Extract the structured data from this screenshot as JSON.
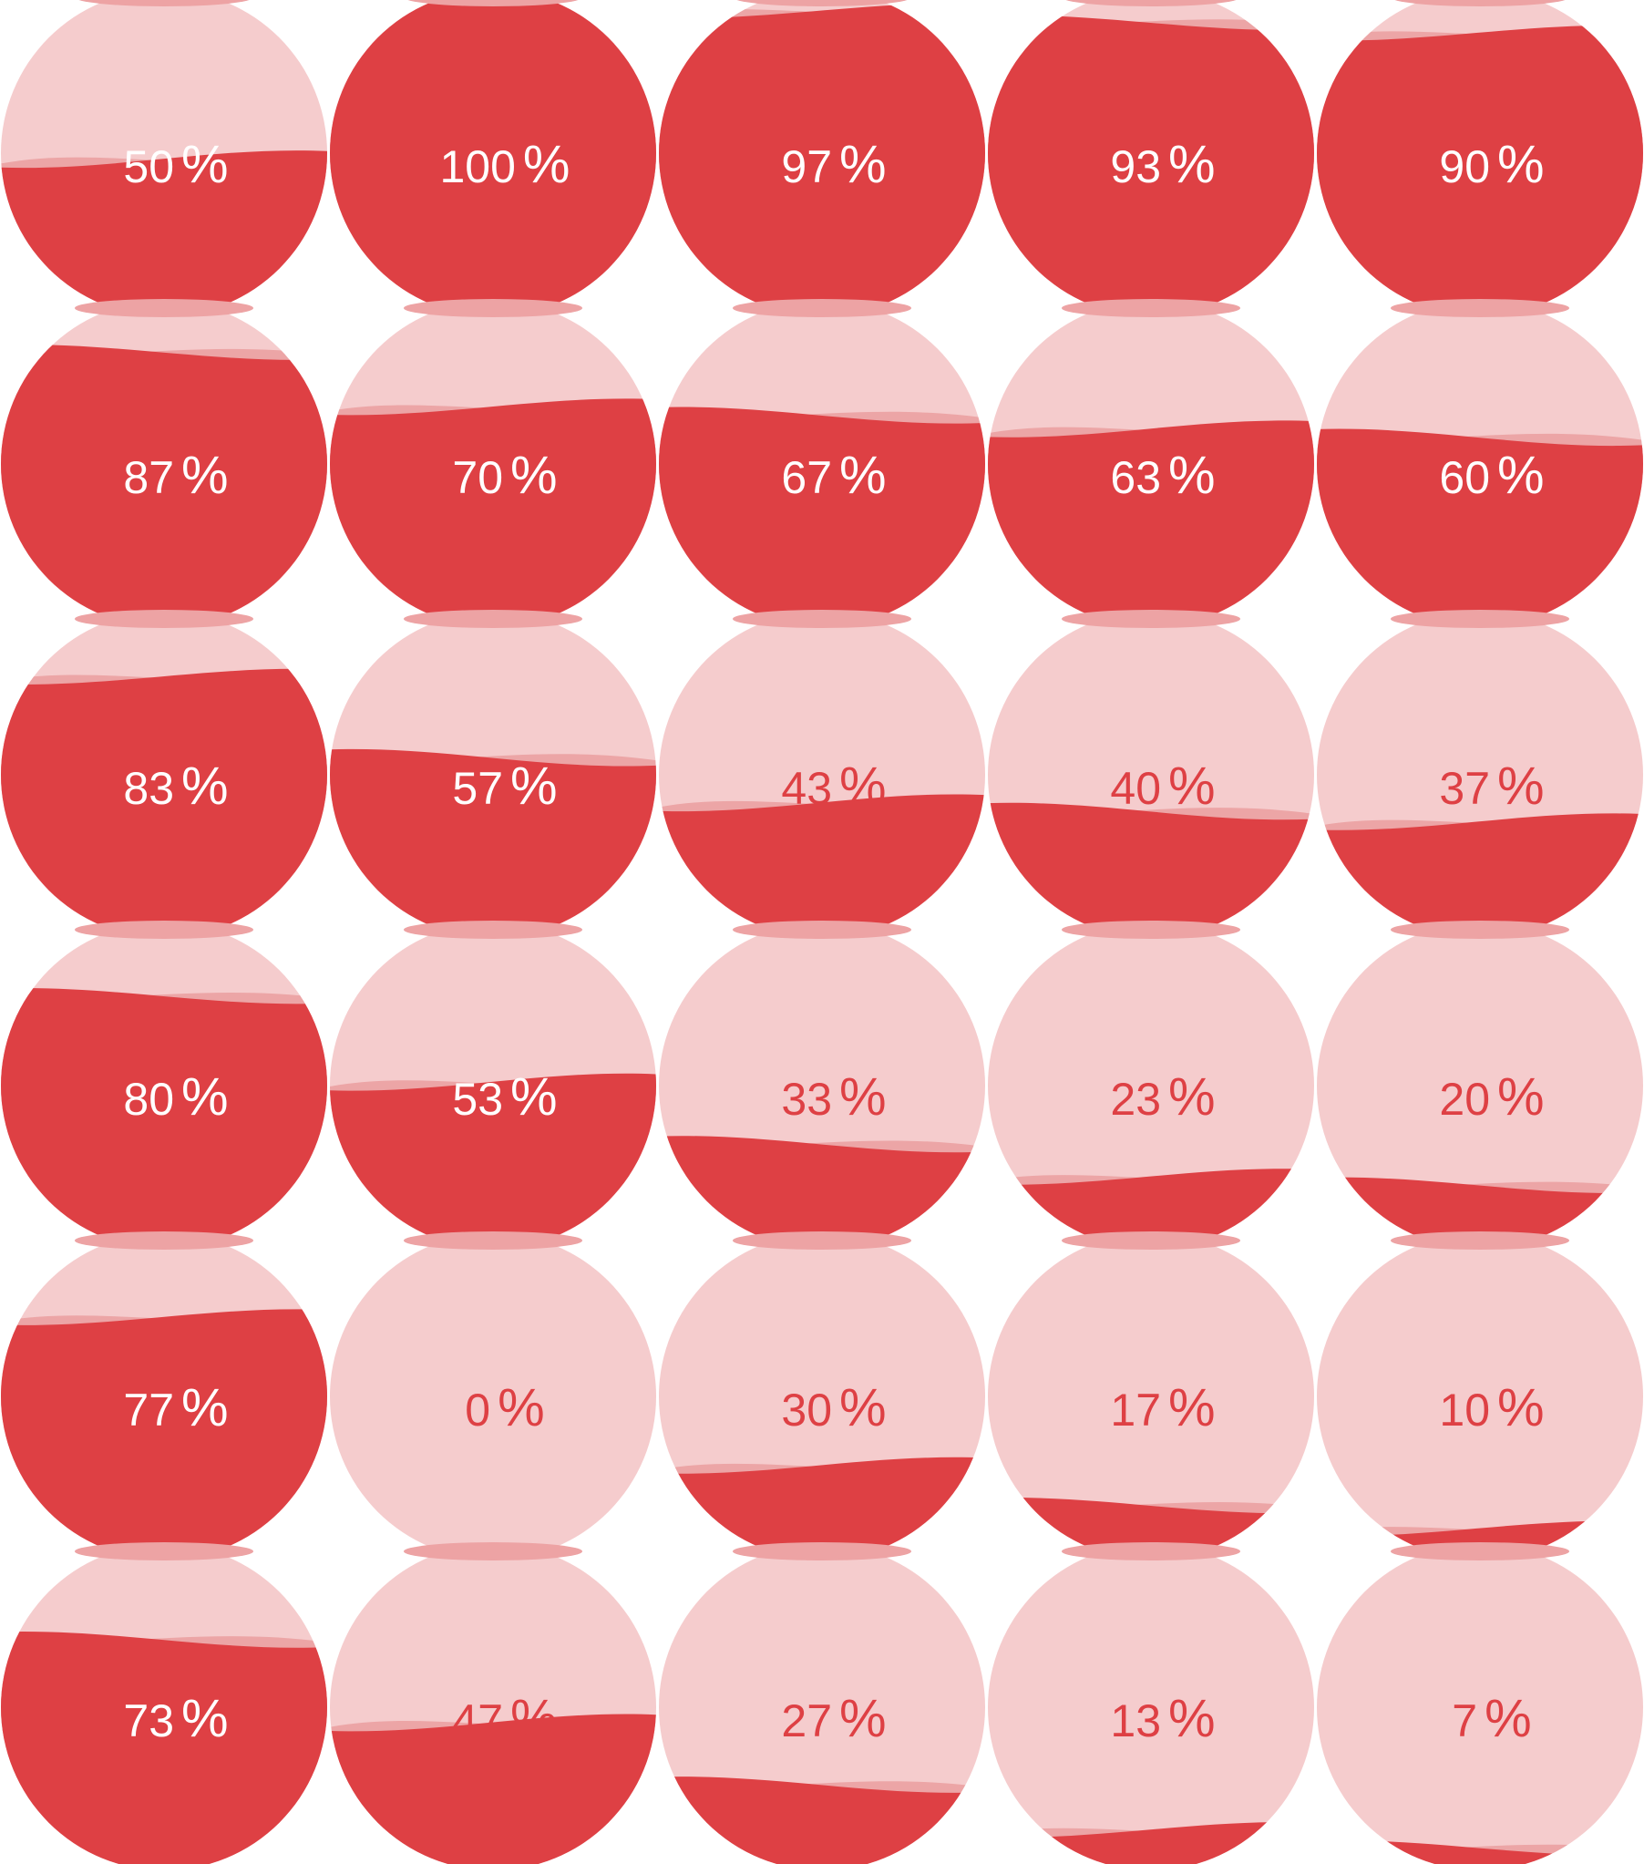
{
  "colors": {
    "fill": "#de4044",
    "empty": "#f5cccd",
    "neck": "#eda3a4",
    "wave_back": "#eca5a6",
    "label_on_fill": "#ffffff",
    "label_on_empty": "#de4044",
    "background": "#ffffff"
  },
  "grid": {
    "rows": [
      [
        {
          "value": 50,
          "number": "50",
          "unit": "%"
        },
        {
          "value": 100,
          "number": "100",
          "unit": "%"
        },
        {
          "value": 97,
          "number": "97",
          "unit": "%"
        },
        {
          "value": 93,
          "number": "93",
          "unit": "%"
        },
        {
          "value": 90,
          "number": "90",
          "unit": "%"
        }
      ],
      [
        {
          "value": 87,
          "number": "87",
          "unit": "%"
        },
        {
          "value": 70,
          "number": "70",
          "unit": "%"
        },
        {
          "value": 67,
          "number": "67",
          "unit": "%"
        },
        {
          "value": 63,
          "number": "63",
          "unit": "%"
        },
        {
          "value": 60,
          "number": "60",
          "unit": "%"
        }
      ],
      [
        {
          "value": 83,
          "number": "83",
          "unit": "%"
        },
        {
          "value": 57,
          "number": "57",
          "unit": "%"
        },
        {
          "value": 43,
          "number": "43",
          "unit": "%"
        },
        {
          "value": 40,
          "number": "40",
          "unit": "%"
        },
        {
          "value": 37,
          "number": "37",
          "unit": "%"
        }
      ],
      [
        {
          "value": 80,
          "number": "80",
          "unit": "%"
        },
        {
          "value": 53,
          "number": "53",
          "unit": "%"
        },
        {
          "value": 33,
          "number": "33",
          "unit": "%"
        },
        {
          "value": 23,
          "number": "23",
          "unit": "%"
        },
        {
          "value": 20,
          "number": "20",
          "unit": "%"
        }
      ],
      [
        {
          "value": 77,
          "number": "77",
          "unit": "%"
        },
        {
          "value": 0,
          "number": "0",
          "unit": "%"
        },
        {
          "value": 30,
          "number": "30",
          "unit": "%"
        },
        {
          "value": 17,
          "number": "17",
          "unit": "%"
        },
        {
          "value": 10,
          "number": "10",
          "unit": "%"
        }
      ],
      [
        {
          "value": 73,
          "number": "73",
          "unit": "%"
        },
        {
          "value": 47,
          "number": "47",
          "unit": "%"
        },
        {
          "value": 27,
          "number": "27",
          "unit": "%"
        },
        {
          "value": 13,
          "number": "13",
          "unit": "%"
        },
        {
          "value": 7,
          "number": "7",
          "unit": "%"
        }
      ]
    ]
  }
}
